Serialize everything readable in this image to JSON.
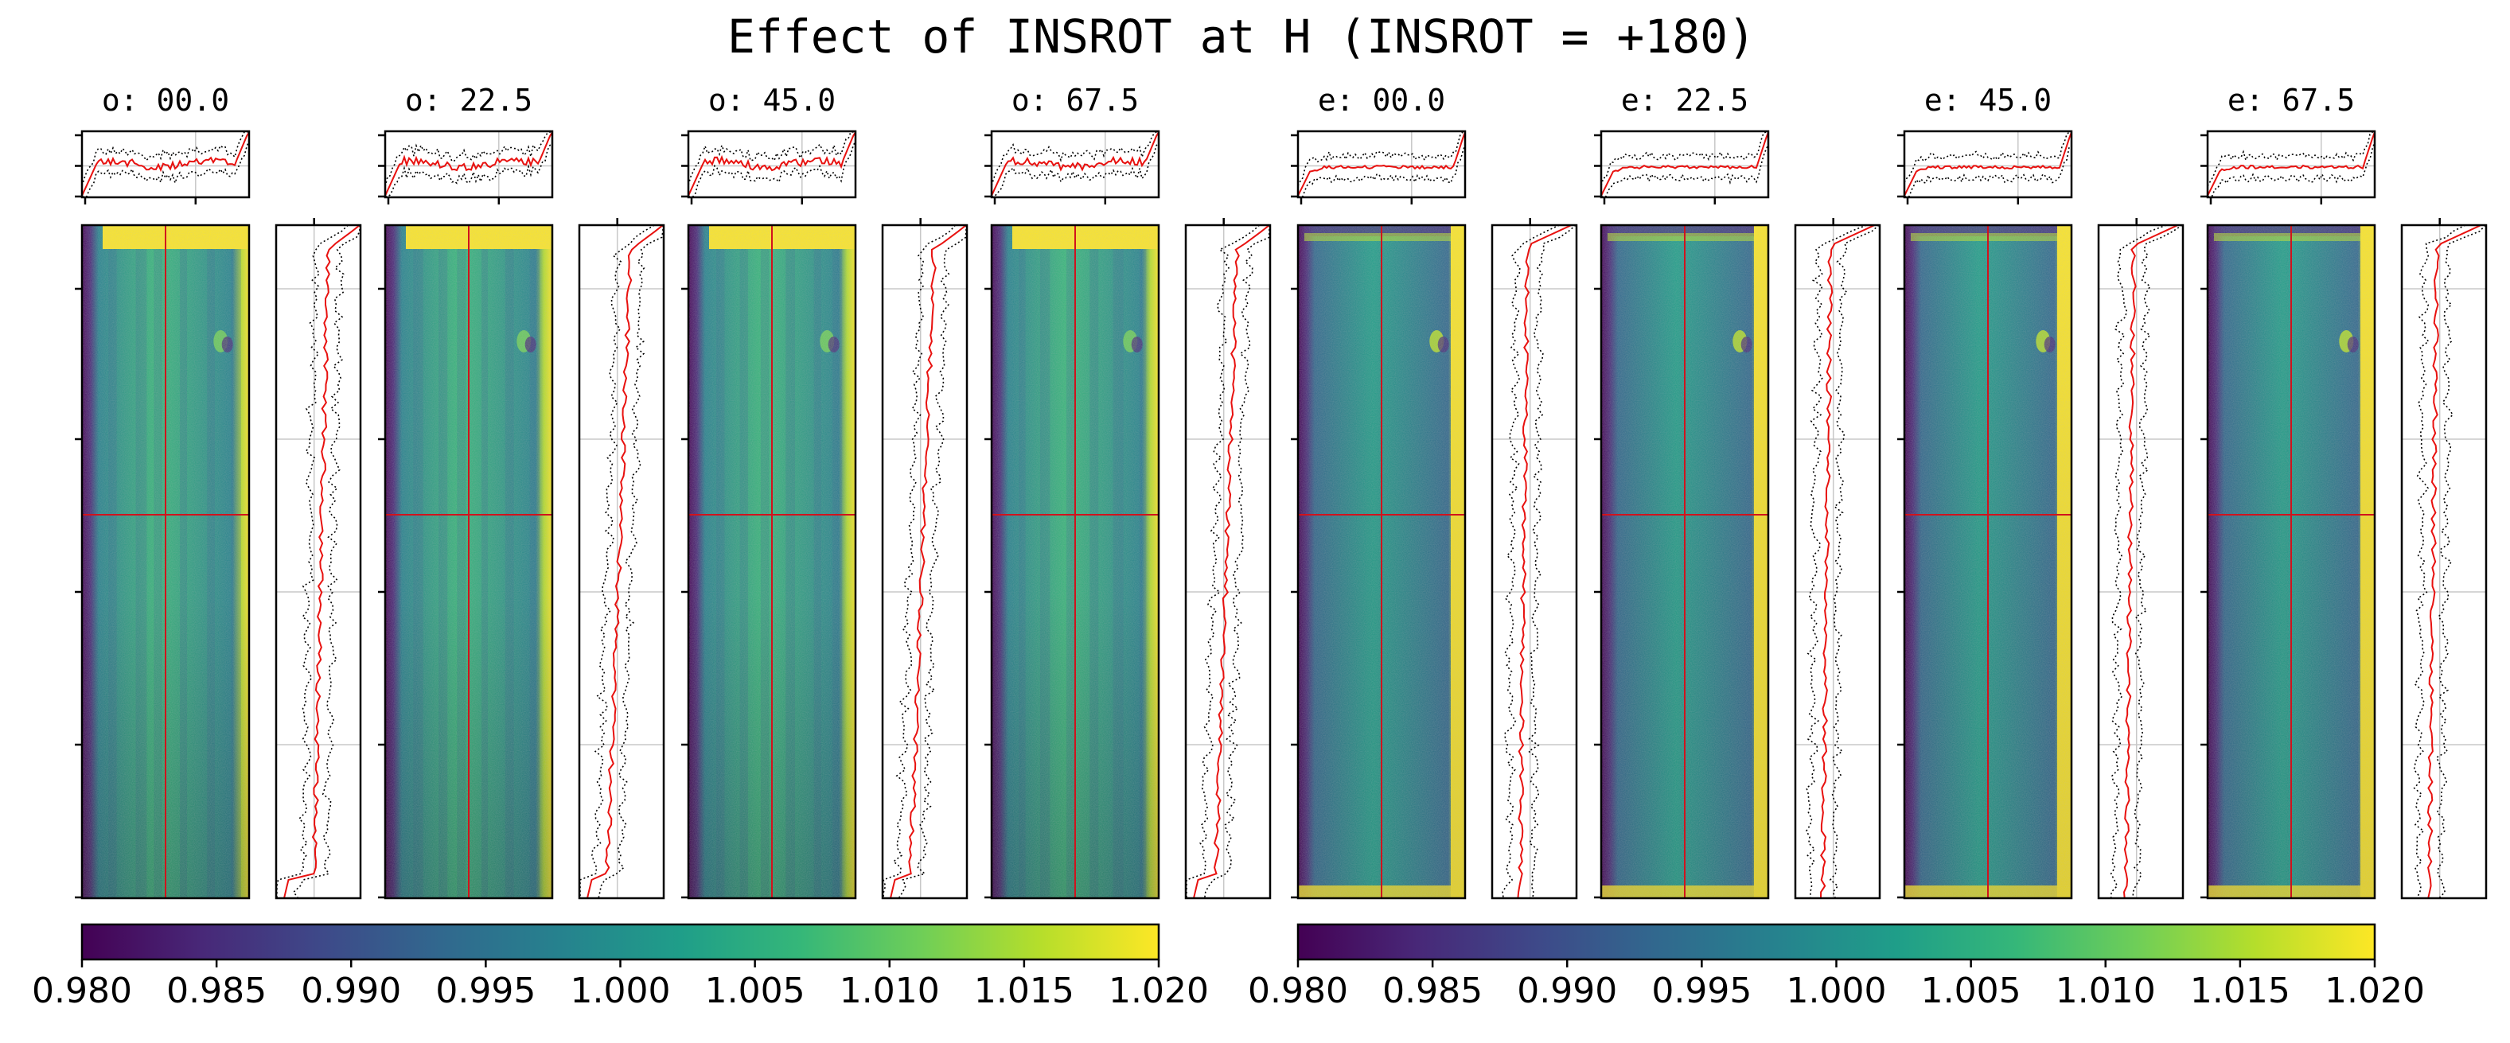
{
  "title": "Effect of INSROT at H (INSROT = +180)",
  "colors": {
    "profile_mean": "#e8110f",
    "profile_band": "#000000",
    "crosshair": "#d1131d",
    "grid": "#c8c8c8",
    "axes": "#000000"
  },
  "colormap": {
    "name": "viridis",
    "stops": [
      "#440154",
      "#482878",
      "#3e4989",
      "#31688e",
      "#26828e",
      "#1f9e89",
      "#35b779",
      "#6ece58",
      "#b5de2b",
      "#fde725"
    ]
  },
  "chart_data": {
    "type": "heatmap",
    "description_of_panels": "8 flat-field image panels, each with a column-profile plot above and a row-profile plot to the right",
    "panels": [
      {
        "title": "o: 00.0",
        "beam": "o",
        "angle": 0.0
      },
      {
        "title": "o: 22.5",
        "beam": "o",
        "angle": 22.5
      },
      {
        "title": "o: 45.0",
        "beam": "o",
        "angle": 45.0
      },
      {
        "title": "o: 67.5",
        "beam": "o",
        "angle": 67.5
      },
      {
        "title": "e: 00.0",
        "beam": "e",
        "angle": 0.0
      },
      {
        "title": "e: 22.5",
        "beam": "e",
        "angle": 22.5
      },
      {
        "title": "e: 45.0",
        "beam": "e",
        "angle": 45.0
      },
      {
        "title": "e: 67.5",
        "beam": "e",
        "angle": 67.5
      }
    ],
    "colorbars": [
      {
        "group": "o",
        "vmin": 0.98,
        "vmax": 1.02,
        "ticks": [
          "0.980",
          "0.985",
          "0.990",
          "0.995",
          "1.000",
          "1.005",
          "1.010",
          "1.015",
          "1.020"
        ]
      },
      {
        "group": "e",
        "vmin": 0.98,
        "vmax": 1.02,
        "ticks": [
          "0.980",
          "0.985",
          "0.990",
          "0.995",
          "1.000",
          "1.005",
          "1.010",
          "1.015",
          "1.020"
        ]
      }
    ],
    "grid": true
  }
}
